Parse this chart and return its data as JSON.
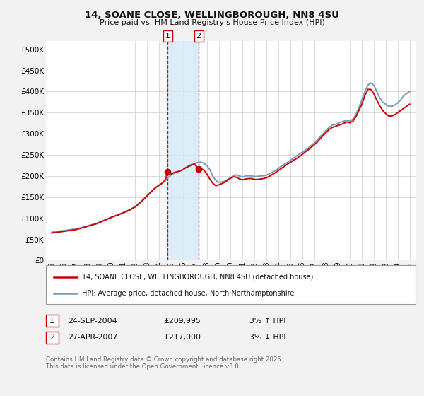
{
  "title": "14, SOANE CLOSE, WELLINGBOROUGH, NN8 4SU",
  "subtitle": "Price paid vs. HM Land Registry's House Price Index (HPI)",
  "background_color": "#f2f2f2",
  "plot_bg_color": "#ffffff",
  "grid_color": "#cccccc",
  "legend1": "14, SOANE CLOSE, WELLINGBOROUGH, NN8 4SU (detached house)",
  "legend2": "HPI: Average price, detached house, North Northamptonshire",
  "footer": "Contains HM Land Registry data © Crown copyright and database right 2025.\nThis data is licensed under the Open Government Licence v3.0.",
  "marker1_date": 2004.73,
  "marker1_value": 209995,
  "marker1_label": "1",
  "marker1_table": "24-SEP-2004",
  "marker1_price": "£209,995",
  "marker1_hpi": "3% ↑ HPI",
  "marker2_date": 2007.32,
  "marker2_value": 217000,
  "marker2_label": "2",
  "marker2_table": "27-APR-2007",
  "marker2_price": "£217,000",
  "marker2_hpi": "3% ↓ HPI",
  "red_color": "#cc0000",
  "blue_color": "#7799bb",
  "shade_color": "#d6eaf8",
  "ylim": [
    0,
    520000
  ],
  "xlim_start": 1994.5,
  "xlim_end": 2025.5,
  "yticks": [
    0,
    50000,
    100000,
    150000,
    200000,
    250000,
    300000,
    350000,
    400000,
    450000,
    500000
  ],
  "ytick_labels": [
    "£0",
    "£50K",
    "£100K",
    "£150K",
    "£200K",
    "£250K",
    "£300K",
    "£350K",
    "£400K",
    "£450K",
    "£500K"
  ],
  "xticks": [
    1995,
    1996,
    1997,
    1998,
    1999,
    2000,
    2001,
    2002,
    2003,
    2004,
    2005,
    2006,
    2007,
    2008,
    2009,
    2010,
    2011,
    2012,
    2013,
    2014,
    2015,
    2016,
    2017,
    2018,
    2019,
    2020,
    2021,
    2022,
    2023,
    2024,
    2025
  ],
  "hpi_x": [
    1995.0,
    1995.25,
    1995.5,
    1995.75,
    1996.0,
    1996.25,
    1996.5,
    1996.75,
    1997.0,
    1997.25,
    1997.5,
    1997.75,
    1998.0,
    1998.25,
    1998.5,
    1998.75,
    1999.0,
    1999.25,
    1999.5,
    1999.75,
    2000.0,
    2000.25,
    2000.5,
    2000.75,
    2001.0,
    2001.25,
    2001.5,
    2001.75,
    2002.0,
    2002.25,
    2002.5,
    2002.75,
    2003.0,
    2003.25,
    2003.5,
    2003.75,
    2004.0,
    2004.25,
    2004.5,
    2004.75,
    2005.0,
    2005.25,
    2005.5,
    2005.75,
    2006.0,
    2006.25,
    2006.5,
    2006.75,
    2007.0,
    2007.25,
    2007.5,
    2007.75,
    2008.0,
    2008.25,
    2008.5,
    2008.75,
    2009.0,
    2009.25,
    2009.5,
    2009.75,
    2010.0,
    2010.25,
    2010.5,
    2010.75,
    2011.0,
    2011.25,
    2011.5,
    2011.75,
    2012.0,
    2012.25,
    2012.5,
    2012.75,
    2013.0,
    2013.25,
    2013.5,
    2013.75,
    2014.0,
    2014.25,
    2014.5,
    2014.75,
    2015.0,
    2015.25,
    2015.5,
    2015.75,
    2016.0,
    2016.25,
    2016.5,
    2016.75,
    2017.0,
    2017.25,
    2017.5,
    2017.75,
    2018.0,
    2018.25,
    2018.5,
    2018.75,
    2019.0,
    2019.25,
    2019.5,
    2019.75,
    2020.0,
    2020.25,
    2020.5,
    2020.75,
    2021.0,
    2021.25,
    2021.5,
    2021.75,
    2022.0,
    2022.25,
    2022.5,
    2022.75,
    2023.0,
    2023.25,
    2023.5,
    2023.75,
    2024.0,
    2024.25,
    2024.5,
    2024.75,
    2025.0
  ],
  "hpi_y": [
    67000,
    68000,
    69000,
    70000,
    71000,
    72000,
    73000,
    74000,
    74500,
    76000,
    78000,
    80000,
    82000,
    84000,
    86000,
    88000,
    91000,
    94000,
    97000,
    100000,
    103000,
    105000,
    108000,
    111000,
    114000,
    117000,
    120000,
    124000,
    128000,
    134000,
    140000,
    147000,
    154000,
    161000,
    168000,
    174000,
    179000,
    183000,
    188000,
    196000,
    202000,
    207000,
    210000,
    212000,
    215000,
    220000,
    225000,
    228000,
    230000,
    232000,
    233000,
    230000,
    225000,
    215000,
    200000,
    190000,
    185000,
    186000,
    188000,
    192000,
    196000,
    200000,
    203000,
    200000,
    198000,
    200000,
    201000,
    200000,
    199000,
    199000,
    200000,
    201000,
    202000,
    205000,
    209000,
    213000,
    218000,
    223000,
    228000,
    232000,
    237000,
    242000,
    247000,
    252000,
    256000,
    261000,
    266000,
    272000,
    278000,
    285000,
    293000,
    300000,
    308000,
    315000,
    320000,
    322000,
    325000,
    328000,
    330000,
    332000,
    330000,
    335000,
    345000,
    362000,
    380000,
    400000,
    415000,
    420000,
    415000,
    400000,
    385000,
    375000,
    370000,
    365000,
    365000,
    368000,
    373000,
    380000,
    390000,
    395000,
    400000
  ],
  "price_x": [
    1995.0,
    1995.25,
    1995.5,
    1995.75,
    1996.0,
    1996.25,
    1996.5,
    1996.75,
    1997.0,
    1997.25,
    1997.5,
    1997.75,
    1998.0,
    1998.25,
    1998.5,
    1998.75,
    1999.0,
    1999.25,
    1999.5,
    1999.75,
    2000.0,
    2000.25,
    2000.5,
    2000.75,
    2001.0,
    2001.25,
    2001.5,
    2001.75,
    2002.0,
    2002.25,
    2002.5,
    2002.75,
    2003.0,
    2003.25,
    2003.5,
    2003.75,
    2004.0,
    2004.25,
    2004.5,
    2004.75,
    2005.0,
    2005.25,
    2005.5,
    2005.75,
    2006.0,
    2006.25,
    2006.5,
    2006.75,
    2007.0,
    2007.25,
    2007.5,
    2007.75,
    2008.0,
    2008.25,
    2008.5,
    2008.75,
    2009.0,
    2009.25,
    2009.5,
    2009.75,
    2010.0,
    2010.25,
    2010.5,
    2010.75,
    2011.0,
    2011.25,
    2011.5,
    2011.75,
    2012.0,
    2012.25,
    2012.5,
    2012.75,
    2013.0,
    2013.25,
    2013.5,
    2013.75,
    2014.0,
    2014.25,
    2014.5,
    2014.75,
    2015.0,
    2015.25,
    2015.5,
    2015.75,
    2016.0,
    2016.25,
    2016.5,
    2016.75,
    2017.0,
    2017.25,
    2017.5,
    2017.75,
    2018.0,
    2018.25,
    2018.5,
    2018.75,
    2019.0,
    2019.25,
    2019.5,
    2019.75,
    2020.0,
    2020.25,
    2020.5,
    2020.75,
    2021.0,
    2021.25,
    2021.5,
    2021.75,
    2022.0,
    2022.25,
    2022.5,
    2022.75,
    2023.0,
    2023.25,
    2023.5,
    2023.75,
    2024.0,
    2024.25,
    2024.5,
    2024.75,
    2025.0
  ],
  "price_y": [
    65000,
    66000,
    67000,
    68000,
    69000,
    70000,
    71000,
    72000,
    73000,
    75000,
    77000,
    79000,
    81000,
    83000,
    85000,
    87000,
    90000,
    93000,
    96000,
    99000,
    102000,
    105000,
    107000,
    110000,
    113000,
    116000,
    119000,
    123000,
    127000,
    133000,
    139000,
    146000,
    153000,
    160000,
    167000,
    173000,
    178000,
    183000,
    190000,
    209995,
    205000,
    208000,
    210000,
    212000,
    215000,
    220000,
    223000,
    226000,
    228000,
    217000,
    218000,
    214000,
    205000,
    193000,
    183000,
    177000,
    179000,
    182000,
    185000,
    190000,
    195000,
    198000,
    197000,
    193000,
    191000,
    193000,
    194000,
    194000,
    192000,
    192000,
    193000,
    194000,
    196000,
    199000,
    204000,
    208000,
    213000,
    218000,
    223000,
    228000,
    232000,
    237000,
    241000,
    246000,
    251000,
    257000,
    262000,
    268000,
    274000,
    280000,
    288000,
    296000,
    303000,
    310000,
    315000,
    317000,
    320000,
    322000,
    325000,
    328000,
    326000,
    330000,
    340000,
    355000,
    370000,
    390000,
    405000,
    405000,
    395000,
    380000,
    366000,
    355000,
    348000,
    342000,
    342000,
    345000,
    350000,
    355000,
    360000,
    365000,
    370000
  ]
}
